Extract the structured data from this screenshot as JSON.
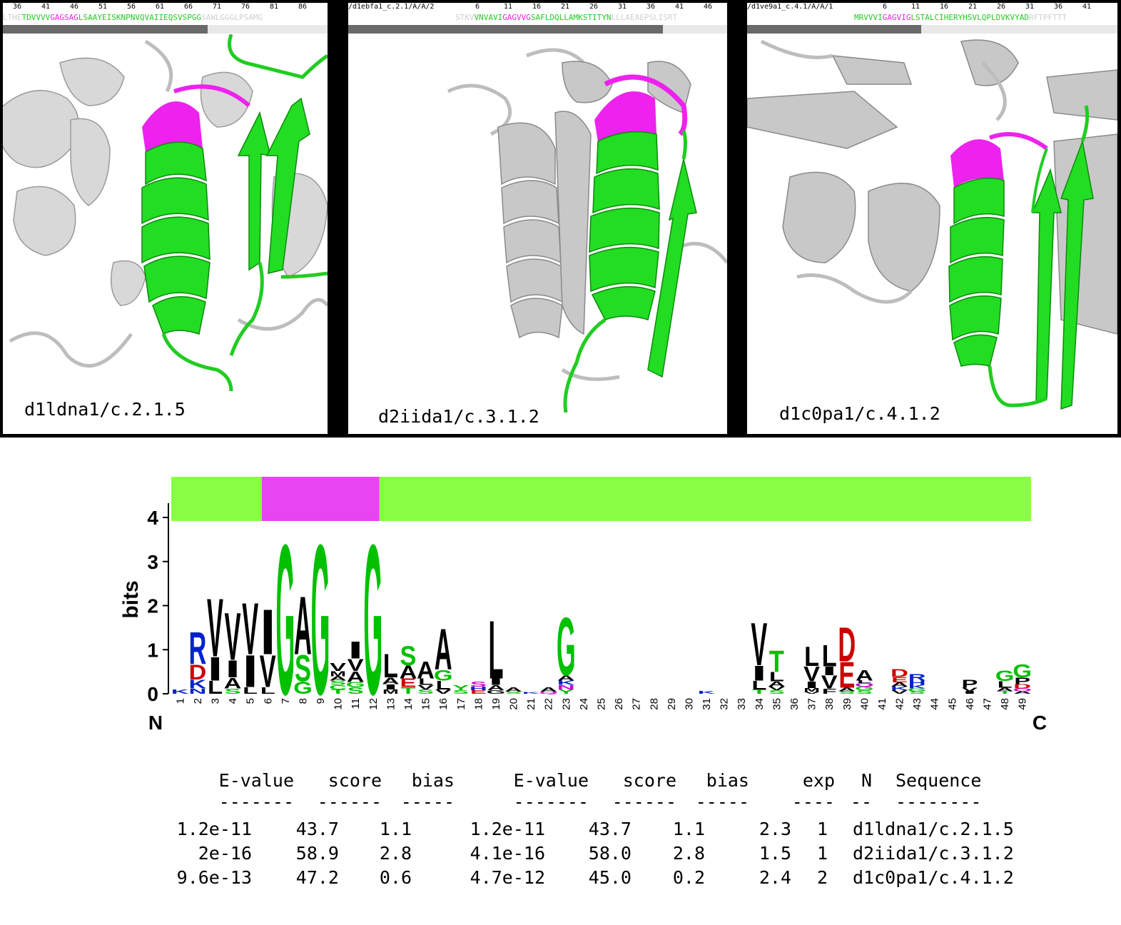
{
  "panels": [
    {
      "id": "d1ldna1",
      "header_text": "",
      "ruler": [
        "36",
        "41",
        "46",
        "51",
        "56",
        "61",
        "66",
        "71",
        "76",
        "81",
        "86"
      ],
      "seq": [
        {
          "t": "LTHE",
          "c": "faint"
        },
        {
          "t": "TDVVVV",
          "c": "green"
        },
        {
          "t": "GAGSAG",
          "c": "magenta"
        },
        {
          "t": "LSAAYEISKNPNVQVAIIEQSVSPGG",
          "c": "green"
        },
        {
          "t": "SAWLGGGLPSAMG",
          "c": "faint"
        }
      ],
      "bar_fraction": 0.63,
      "label": "d1ldna1/c.2.1.5"
    },
    {
      "id": "d2iida1",
      "header_text": "/d1ebfa1_c.2.1/A/A/2",
      "ruler": [
        "6",
        "11",
        "16",
        "21",
        "26",
        "31",
        "36",
        "41",
        "46"
      ],
      "seq": [
        {
          "t": "STKV",
          "c": "faint"
        },
        {
          "t": "VNVAVI",
          "c": "green"
        },
        {
          "t": "GAGVVG",
          "c": "magenta"
        },
        {
          "t": "SAFLDQLLAMKSTITYN",
          "c": "green"
        },
        {
          "t": "LLLAEAEPSLISRT",
          "c": "faint"
        }
      ],
      "bar_fraction": 0.83,
      "label": "d2iida1/c.3.1.2"
    },
    {
      "id": "d1c0pa1",
      "header_text": "/d1ve9a1_c.4.1/A/A/1",
      "ruler": [
        "6",
        "11",
        "16",
        "21",
        "26",
        "31",
        "36",
        "41"
      ],
      "seq": [
        {
          "t": "MRVVVI",
          "c": "green"
        },
        {
          "t": "GAGVIG",
          "c": "magenta"
        },
        {
          "t": "LSTALCIHERYHSVLQPLDVKVYAD",
          "c": "green"
        },
        {
          "t": "RFTPFTTT",
          "c": "faint"
        }
      ],
      "bar_fraction": 0.47,
      "label": "d1c0pa1/c.4.1.2"
    }
  ],
  "logo": {
    "ylabel": "bits",
    "y_ticks": [
      "0",
      "1",
      "2",
      "3",
      "4"
    ],
    "ymax": 4,
    "n_label": "N",
    "c_label": "C",
    "positions": 49,
    "region_bar": [
      {
        "from": 1,
        "to": 10,
        "color": "#88ff44"
      },
      {
        "from": 11,
        "to": 23,
        "color": "#e844f0"
      },
      {
        "from": 24,
        "to": 95,
        "color": "#88ff44"
      }
    ],
    "letter_colors": {
      "black": "#000000",
      "green": "#00c000",
      "blue": "#0022cc",
      "red": "#cc0000",
      "magenta": "#cc00cc",
      "orange": "#ff8800"
    },
    "columns": [
      {
        "pos": 1,
        "stack": [
          {
            "l": "K",
            "h": 0.1,
            "c": "blue"
          }
        ]
      },
      {
        "pos": 2,
        "stack": [
          {
            "l": "N",
            "h": 0.12,
            "c": "blue"
          },
          {
            "l": "K",
            "h": 0.2,
            "c": "blue"
          },
          {
            "l": "D",
            "h": 0.35,
            "c": "red"
          },
          {
            "l": "R",
            "h": 0.75,
            "c": "blue"
          }
        ]
      },
      {
        "pos": 3,
        "stack": [
          {
            "l": "L",
            "h": 0.3,
            "c": "black"
          },
          {
            "l": "I",
            "h": 0.55,
            "c": "black"
          },
          {
            "l": "V",
            "h": 1.35,
            "c": "black"
          }
        ]
      },
      {
        "pos": 4,
        "stack": [
          {
            "l": "S",
            "h": 0.12,
            "c": "green"
          },
          {
            "l": "A",
            "h": 0.25,
            "c": "black"
          },
          {
            "l": "I",
            "h": 0.4,
            "c": "black"
          },
          {
            "l": "V",
            "h": 1.1,
            "c": "black"
          }
        ]
      },
      {
        "pos": 5,
        "stack": [
          {
            "l": "L",
            "h": 0.15,
            "c": "black"
          },
          {
            "l": "I",
            "h": 0.75,
            "c": "black"
          },
          {
            "l": "V",
            "h": 1.2,
            "c": "black"
          }
        ]
      },
      {
        "pos": 6,
        "stack": [
          {
            "l": "L",
            "h": 0.15,
            "c": "black"
          },
          {
            "l": "V",
            "h": 0.75,
            "c": "black"
          },
          {
            "l": "I",
            "h": 1.05,
            "c": "black"
          }
        ]
      },
      {
        "pos": 7,
        "stack": [
          {
            "l": "G",
            "h": 3.5,
            "c": "green"
          }
        ]
      },
      {
        "pos": 8,
        "stack": [
          {
            "l": "G",
            "h": 0.28,
            "c": "green"
          },
          {
            "l": "S",
            "h": 0.62,
            "c": "green"
          },
          {
            "l": "A",
            "h": 1.35,
            "c": "black"
          }
        ]
      },
      {
        "pos": 9,
        "stack": [
          {
            "l": "G",
            "h": 3.5,
            "c": "green"
          }
        ]
      },
      {
        "pos": 10,
        "stack": [
          {
            "l": "T",
            "h": 0.1,
            "c": "green"
          },
          {
            "l": "C",
            "h": 0.1,
            "c": "green"
          },
          {
            "l": "S",
            "h": 0.1,
            "c": "green"
          },
          {
            "l": "A",
            "h": 0.1,
            "c": "black"
          },
          {
            "l": "M",
            "h": 0.12,
            "c": "black"
          },
          {
            "l": "V",
            "h": 0.18,
            "c": "black"
          }
        ]
      },
      {
        "pos": 11,
        "stack": [
          {
            "l": "S",
            "h": 0.15,
            "c": "green"
          },
          {
            "l": "G",
            "h": 0.12,
            "c": "green"
          },
          {
            "l": "A",
            "h": 0.25,
            "c": "black"
          },
          {
            "l": "V",
            "h": 0.28,
            "c": "black"
          },
          {
            "l": "I",
            "h": 0.4,
            "c": "black"
          }
        ]
      },
      {
        "pos": 12,
        "stack": [
          {
            "l": "G",
            "h": 3.5,
            "c": "green"
          }
        ]
      },
      {
        "pos": 13,
        "stack": [
          {
            "l": "M",
            "h": 0.1,
            "c": "black"
          },
          {
            "l": "I",
            "h": 0.12,
            "c": "black"
          },
          {
            "l": "A",
            "h": 0.15,
            "c": "black"
          },
          {
            "l": "L",
            "h": 0.55,
            "c": "black"
          }
        ]
      },
      {
        "pos": 14,
        "stack": [
          {
            "l": "T",
            "h": 0.15,
            "c": "green"
          },
          {
            "l": "E",
            "h": 0.2,
            "c": "red"
          },
          {
            "l": "A",
            "h": 0.3,
            "c": "black"
          },
          {
            "l": "S",
            "h": 0.45,
            "c": "green"
          }
        ]
      },
      {
        "pos": 15,
        "stack": [
          {
            "l": "S",
            "h": 0.1,
            "c": "green"
          },
          {
            "l": "V",
            "h": 0.1,
            "c": "black"
          },
          {
            "l": "L",
            "h": 0.15,
            "c": "black"
          },
          {
            "l": "A",
            "h": 0.4,
            "c": "black"
          }
        ]
      },
      {
        "pos": 16,
        "stack": [
          {
            "l": "V",
            "h": 0.1,
            "c": "black"
          },
          {
            "l": "L",
            "h": 0.2,
            "c": "black"
          },
          {
            "l": "G",
            "h": 0.25,
            "c": "green"
          },
          {
            "l": "A",
            "h": 0.95,
            "c": "black"
          }
        ]
      },
      {
        "pos": 17,
        "stack": [
          {
            "l": "S",
            "h": 0.08,
            "c": "green"
          },
          {
            "l": "Y",
            "h": 0.12,
            "c": "green"
          }
        ]
      },
      {
        "pos": 18,
        "stack": [
          {
            "l": "E",
            "h": 0.08,
            "c": "red"
          },
          {
            "l": "H",
            "h": 0.08,
            "c": "blue"
          },
          {
            "l": "S",
            "h": 0.12,
            "c": "magenta"
          }
        ]
      },
      {
        "pos": 19,
        "stack": [
          {
            "l": "G",
            "h": 0.08,
            "c": "black"
          },
          {
            "l": "A",
            "h": 0.12,
            "c": "black"
          },
          {
            "l": "I",
            "h": 0.15,
            "c": "black"
          },
          {
            "l": "L",
            "h": 1.35,
            "c": "black"
          }
        ]
      },
      {
        "pos": 20,
        "stack": [
          {
            "l": "S",
            "h": 0.05,
            "c": "green"
          },
          {
            "l": "A",
            "h": 0.1,
            "c": "black"
          }
        ]
      },
      {
        "pos": 21,
        "stack": [
          {
            "l": "K",
            "h": 0.04,
            "c": "blue"
          }
        ]
      },
      {
        "pos": 22,
        "stack": [
          {
            "l": "Q",
            "h": 0.05,
            "c": "magenta"
          },
          {
            "l": "A",
            "h": 0.1,
            "c": "black"
          }
        ]
      },
      {
        "pos": 23,
        "stack": [
          {
            "l": "Y",
            "h": 0.1,
            "c": "green"
          },
          {
            "l": "N",
            "h": 0.1,
            "c": "magenta"
          },
          {
            "l": "K",
            "h": 0.1,
            "c": "blue"
          },
          {
            "l": "A",
            "h": 0.12,
            "c": "black"
          },
          {
            "l": "G",
            "h": 1.35,
            "c": "green"
          }
        ]
      },
      {
        "pos": 31,
        "stack": [
          {
            "l": "K",
            "h": 0.06,
            "c": "blue"
          }
        ]
      },
      {
        "pos": 34,
        "stack": [
          {
            "l": "T",
            "h": 0.1,
            "c": "green"
          },
          {
            "l": "L",
            "h": 0.2,
            "c": "black"
          },
          {
            "l": "I",
            "h": 0.35,
            "c": "black"
          },
          {
            "l": "V",
            "h": 1.0,
            "c": "black"
          }
        ]
      },
      {
        "pos": 35,
        "stack": [
          {
            "l": "S",
            "h": 0.08,
            "c": "green"
          },
          {
            "l": "V",
            "h": 0.08,
            "c": "black"
          },
          {
            "l": "A",
            "h": 0.12,
            "c": "black"
          },
          {
            "l": "L",
            "h": 0.22,
            "c": "black"
          },
          {
            "l": "T",
            "h": 0.5,
            "c": "green"
          }
        ]
      },
      {
        "pos": 37,
        "stack": [
          {
            "l": "V",
            "h": 0.05,
            "c": "black"
          },
          {
            "l": "M",
            "h": 0.08,
            "c": "black"
          },
          {
            "l": "I",
            "h": 0.15,
            "c": "black"
          },
          {
            "l": "V",
            "h": 0.35,
            "c": "black"
          },
          {
            "l": "L",
            "h": 0.45,
            "c": "black"
          }
        ]
      },
      {
        "pos": 38,
        "stack": [
          {
            "l": "F",
            "h": 0.12,
            "c": "black"
          },
          {
            "l": "V",
            "h": 0.3,
            "c": "black"
          },
          {
            "l": "I",
            "h": 0.2,
            "c": "black"
          },
          {
            "l": "L",
            "h": 0.5,
            "c": "black"
          }
        ]
      },
      {
        "pos": 39,
        "stack": [
          {
            "l": "S",
            "h": 0.06,
            "c": "green"
          },
          {
            "l": "A",
            "h": 0.08,
            "c": "black"
          },
          {
            "l": "E",
            "h": 0.6,
            "c": "red"
          },
          {
            "l": "D",
            "h": 0.8,
            "c": "red"
          }
        ]
      },
      {
        "pos": 40,
        "stack": [
          {
            "l": "S",
            "h": 0.08,
            "c": "green"
          },
          {
            "l": "G",
            "h": 0.08,
            "c": "green"
          },
          {
            "l": "Q",
            "h": 0.08,
            "c": "magenta"
          },
          {
            "l": "L",
            "h": 0.06,
            "c": "black"
          },
          {
            "l": "A",
            "h": 0.25,
            "c": "black"
          }
        ]
      },
      {
        "pos": 42,
        "stack": [
          {
            "l": "V",
            "h": 0.08,
            "c": "black"
          },
          {
            "l": "K",
            "h": 0.08,
            "c": "blue"
          },
          {
            "l": "A",
            "h": 0.1,
            "c": "black"
          },
          {
            "l": "E",
            "h": 0.12,
            "c": "red"
          },
          {
            "l": "D",
            "h": 0.18,
            "c": "red"
          }
        ]
      },
      {
        "pos": 43,
        "stack": [
          {
            "l": "S",
            "h": 0.06,
            "c": "green"
          },
          {
            "l": "G",
            "h": 0.06,
            "c": "green"
          },
          {
            "l": "K",
            "h": 0.08,
            "c": "blue"
          },
          {
            "l": "H",
            "h": 0.1,
            "c": "blue"
          },
          {
            "l": "R",
            "h": 0.15,
            "c": "blue"
          }
        ]
      },
      {
        "pos": 46,
        "stack": [
          {
            "l": "I",
            "h": 0.06,
            "c": "black"
          },
          {
            "l": "V",
            "h": 0.08,
            "c": "black"
          },
          {
            "l": "P",
            "h": 0.18,
            "c": "black"
          }
        ]
      },
      {
        "pos": 48,
        "stack": [
          {
            "l": "T",
            "h": 0.06,
            "c": "green"
          },
          {
            "l": "A",
            "h": 0.08,
            "c": "black"
          },
          {
            "l": "L",
            "h": 0.15,
            "c": "black"
          },
          {
            "l": "G",
            "h": 0.25,
            "c": "green"
          }
        ]
      },
      {
        "pos": 49,
        "stack": [
          {
            "l": "A",
            "h": 0.06,
            "c": "black"
          },
          {
            "l": "Q",
            "h": 0.06,
            "c": "magenta"
          },
          {
            "l": "D",
            "h": 0.1,
            "c": "red"
          },
          {
            "l": "P",
            "h": 0.15,
            "c": "black"
          },
          {
            "l": "G",
            "h": 0.3,
            "c": "green"
          }
        ]
      }
    ]
  },
  "table": {
    "headers": [
      "E-value",
      "score",
      "bias",
      "E-value",
      "score",
      "bias",
      "exp",
      "N",
      "Sequence"
    ],
    "dashes": [
      "-------",
      "------",
      "-----",
      "-------",
      "------",
      "-----",
      "----",
      "--",
      "--------"
    ],
    "rows": [
      [
        "1.2e-11",
        "43.7",
        "1.1",
        "1.2e-11",
        "43.7",
        "1.1",
        "2.3",
        "1",
        "d1ldna1/c.2.1.5"
      ],
      [
        "2e-16",
        "58.9",
        "2.8",
        "4.1e-16",
        "58.0",
        "2.8",
        "1.5",
        "1",
        "d2iida1/c.3.1.2"
      ],
      [
        "9.6e-13",
        "47.2",
        "0.6",
        "4.7e-12",
        "45.0",
        "0.2",
        "2.4",
        "2",
        "d1c0pa1/c.4.1.2"
      ]
    ]
  }
}
